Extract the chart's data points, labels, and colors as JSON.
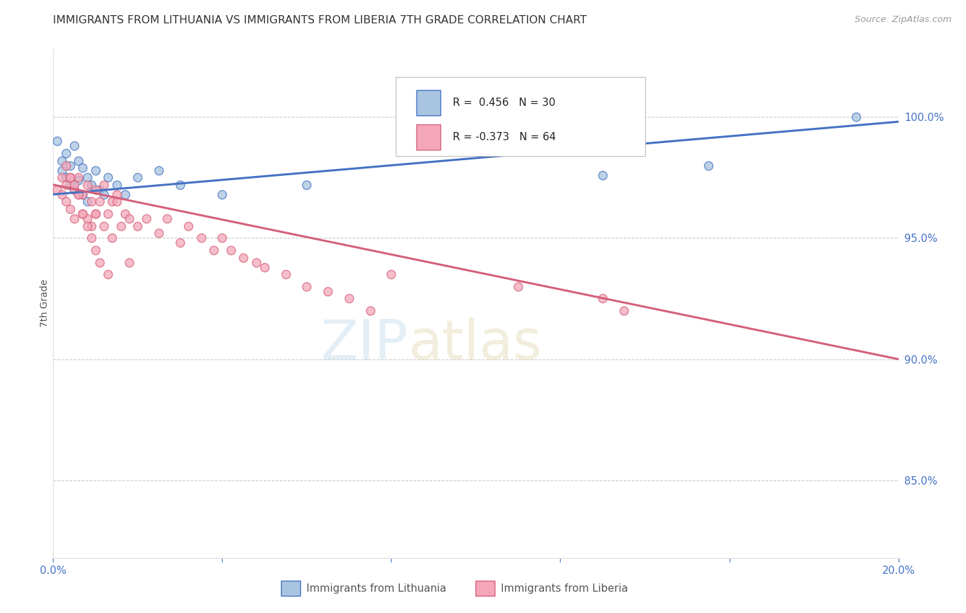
{
  "title": "IMMIGRANTS FROM LITHUANIA VS IMMIGRANTS FROM LIBERIA 7TH GRADE CORRELATION CHART",
  "source_text": "Source: ZipAtlas.com",
  "ylabel": "7th Grade",
  "xmin": 0.0,
  "xmax": 0.2,
  "ymin": 0.818,
  "ymax": 1.028,
  "yticks": [
    0.85,
    0.9,
    0.95,
    1.0
  ],
  "ytick_labels": [
    "85.0%",
    "90.0%",
    "95.0%",
    "100.0%"
  ],
  "xticks": [
    0.0,
    0.04,
    0.08,
    0.12,
    0.16,
    0.2
  ],
  "xtick_labels": [
    "0.0%",
    "",
    "",
    "",
    "",
    "20.0%"
  ],
  "r_lithuania": 0.456,
  "n_lithuania": 30,
  "r_liberia": -0.373,
  "n_liberia": 64,
  "color_lithuania": "#a8c4e0",
  "color_liberia": "#f4a7b9",
  "line_color_lithuania": "#4472c4",
  "line_color_liberia": "#d4607a",
  "legend_label_lithuania": "Immigrants from Lithuania",
  "legend_label_liberia": "Immigrants from Liberia",
  "title_color": "#333333",
  "axis_color": "#4472c4",
  "lithuania_x": [
    0.001,
    0.002,
    0.002,
    0.003,
    0.003,
    0.004,
    0.004,
    0.005,
    0.005,
    0.006,
    0.006,
    0.007,
    0.007,
    0.008,
    0.008,
    0.009,
    0.01,
    0.011,
    0.012,
    0.013,
    0.015,
    0.017,
    0.02,
    0.025,
    0.03,
    0.04,
    0.06,
    0.13,
    0.155,
    0.19
  ],
  "lithuania_y": [
    0.99,
    0.982,
    0.978,
    0.985,
    0.975,
    0.98,
    0.972,
    0.988,
    0.97,
    0.982,
    0.974,
    0.979,
    0.968,
    0.975,
    0.965,
    0.972,
    0.978,
    0.97,
    0.968,
    0.975,
    0.972,
    0.968,
    0.975,
    0.978,
    0.972,
    0.968,
    0.972,
    0.976,
    0.98,
    1.0
  ],
  "liberia_x": [
    0.001,
    0.002,
    0.002,
    0.003,
    0.003,
    0.004,
    0.004,
    0.005,
    0.005,
    0.006,
    0.006,
    0.007,
    0.007,
    0.008,
    0.008,
    0.009,
    0.009,
    0.01,
    0.01,
    0.011,
    0.012,
    0.013,
    0.014,
    0.015,
    0.016,
    0.017,
    0.018,
    0.02,
    0.022,
    0.025,
    0.027,
    0.03,
    0.032,
    0.035,
    0.038,
    0.04,
    0.042,
    0.045,
    0.048,
    0.05,
    0.055,
    0.06,
    0.065,
    0.07,
    0.075,
    0.01,
    0.012,
    0.014,
    0.015,
    0.018,
    0.003,
    0.004,
    0.005,
    0.006,
    0.007,
    0.008,
    0.009,
    0.01,
    0.011,
    0.013,
    0.08,
    0.11,
    0.13,
    0.135
  ],
  "liberia_y": [
    0.97,
    0.975,
    0.968,
    0.972,
    0.965,
    0.975,
    0.962,
    0.97,
    0.958,
    0.968,
    0.975,
    0.96,
    0.968,
    0.972,
    0.958,
    0.965,
    0.955,
    0.97,
    0.96,
    0.965,
    0.972,
    0.96,
    0.965,
    0.968,
    0.955,
    0.96,
    0.958,
    0.955,
    0.958,
    0.952,
    0.958,
    0.948,
    0.955,
    0.95,
    0.945,
    0.95,
    0.945,
    0.942,
    0.94,
    0.938,
    0.935,
    0.93,
    0.928,
    0.925,
    0.92,
    0.96,
    0.955,
    0.95,
    0.965,
    0.94,
    0.98,
    0.975,
    0.972,
    0.968,
    0.96,
    0.955,
    0.95,
    0.945,
    0.94,
    0.935,
    0.935,
    0.93,
    0.925,
    0.92
  ],
  "lith_line_x": [
    0.0,
    0.2
  ],
  "lith_line_y": [
    0.968,
    0.998
  ],
  "lib_line_x": [
    0.0,
    0.2
  ],
  "lib_line_y": [
    0.972,
    0.9
  ],
  "marker_size": 80
}
